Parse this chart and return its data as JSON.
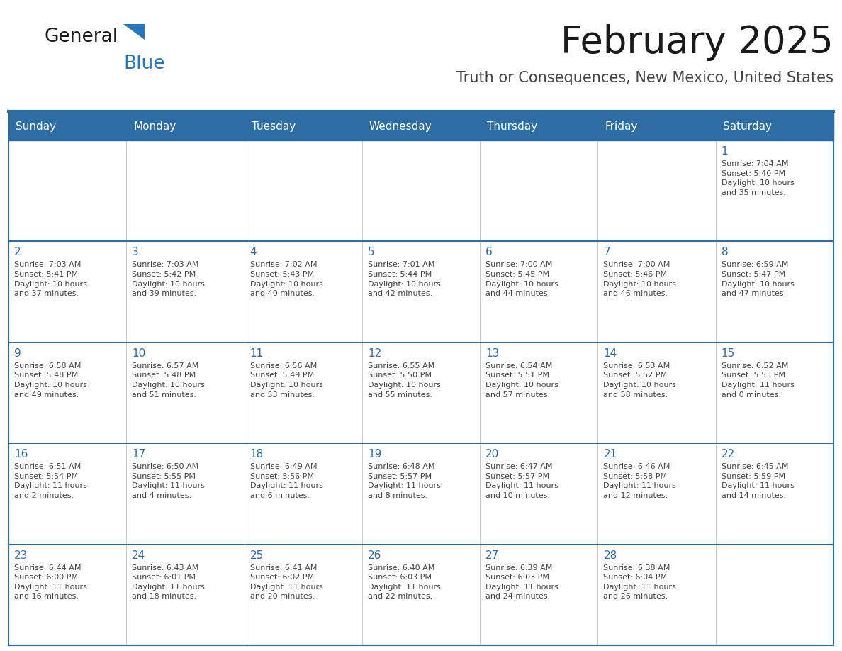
{
  "title": "February 2025",
  "subtitle": "Truth or Consequences, New Mexico, United States",
  "days_of_week": [
    "Sunday",
    "Monday",
    "Tuesday",
    "Wednesday",
    "Thursday",
    "Friday",
    "Saturday"
  ],
  "header_bg": "#2E6DA4",
  "header_text": "#FFFFFF",
  "cell_bg": "#FFFFFF",
  "cell_bg_first_row": "#F0F0F0",
  "day_number_color": "#2E6DA4",
  "text_color": "#444444",
  "row_border_color": "#2E6DA4",
  "col_border_color": "#CCCCCC",
  "outer_border_color": "#2E6DA4",
  "title_color": "#1a1a1a",
  "subtitle_color": "#444444",
  "logo_general_color": "#1a1a1a",
  "logo_blue_color": "#2479BE",
  "week_rows": [
    [
      {
        "day": null,
        "info": null
      },
      {
        "day": null,
        "info": null
      },
      {
        "day": null,
        "info": null
      },
      {
        "day": null,
        "info": null
      },
      {
        "day": null,
        "info": null
      },
      {
        "day": null,
        "info": null
      },
      {
        "day": 1,
        "info": "Sunrise: 7:04 AM\nSunset: 5:40 PM\nDaylight: 10 hours\nand 35 minutes."
      }
    ],
    [
      {
        "day": 2,
        "info": "Sunrise: 7:03 AM\nSunset: 5:41 PM\nDaylight: 10 hours\nand 37 minutes."
      },
      {
        "day": 3,
        "info": "Sunrise: 7:03 AM\nSunset: 5:42 PM\nDaylight: 10 hours\nand 39 minutes."
      },
      {
        "day": 4,
        "info": "Sunrise: 7:02 AM\nSunset: 5:43 PM\nDaylight: 10 hours\nand 40 minutes."
      },
      {
        "day": 5,
        "info": "Sunrise: 7:01 AM\nSunset: 5:44 PM\nDaylight: 10 hours\nand 42 minutes."
      },
      {
        "day": 6,
        "info": "Sunrise: 7:00 AM\nSunset: 5:45 PM\nDaylight: 10 hours\nand 44 minutes."
      },
      {
        "day": 7,
        "info": "Sunrise: 7:00 AM\nSunset: 5:46 PM\nDaylight: 10 hours\nand 46 minutes."
      },
      {
        "day": 8,
        "info": "Sunrise: 6:59 AM\nSunset: 5:47 PM\nDaylight: 10 hours\nand 47 minutes."
      }
    ],
    [
      {
        "day": 9,
        "info": "Sunrise: 6:58 AM\nSunset: 5:48 PM\nDaylight: 10 hours\nand 49 minutes."
      },
      {
        "day": 10,
        "info": "Sunrise: 6:57 AM\nSunset: 5:48 PM\nDaylight: 10 hours\nand 51 minutes."
      },
      {
        "day": 11,
        "info": "Sunrise: 6:56 AM\nSunset: 5:49 PM\nDaylight: 10 hours\nand 53 minutes."
      },
      {
        "day": 12,
        "info": "Sunrise: 6:55 AM\nSunset: 5:50 PM\nDaylight: 10 hours\nand 55 minutes."
      },
      {
        "day": 13,
        "info": "Sunrise: 6:54 AM\nSunset: 5:51 PM\nDaylight: 10 hours\nand 57 minutes."
      },
      {
        "day": 14,
        "info": "Sunrise: 6:53 AM\nSunset: 5:52 PM\nDaylight: 10 hours\nand 58 minutes."
      },
      {
        "day": 15,
        "info": "Sunrise: 6:52 AM\nSunset: 5:53 PM\nDaylight: 11 hours\nand 0 minutes."
      }
    ],
    [
      {
        "day": 16,
        "info": "Sunrise: 6:51 AM\nSunset: 5:54 PM\nDaylight: 11 hours\nand 2 minutes."
      },
      {
        "day": 17,
        "info": "Sunrise: 6:50 AM\nSunset: 5:55 PM\nDaylight: 11 hours\nand 4 minutes."
      },
      {
        "day": 18,
        "info": "Sunrise: 6:49 AM\nSunset: 5:56 PM\nDaylight: 11 hours\nand 6 minutes."
      },
      {
        "day": 19,
        "info": "Sunrise: 6:48 AM\nSunset: 5:57 PM\nDaylight: 11 hours\nand 8 minutes."
      },
      {
        "day": 20,
        "info": "Sunrise: 6:47 AM\nSunset: 5:57 PM\nDaylight: 11 hours\nand 10 minutes."
      },
      {
        "day": 21,
        "info": "Sunrise: 6:46 AM\nSunset: 5:58 PM\nDaylight: 11 hours\nand 12 minutes."
      },
      {
        "day": 22,
        "info": "Sunrise: 6:45 AM\nSunset: 5:59 PM\nDaylight: 11 hours\nand 14 minutes."
      }
    ],
    [
      {
        "day": 23,
        "info": "Sunrise: 6:44 AM\nSunset: 6:00 PM\nDaylight: 11 hours\nand 16 minutes."
      },
      {
        "day": 24,
        "info": "Sunrise: 6:43 AM\nSunset: 6:01 PM\nDaylight: 11 hours\nand 18 minutes."
      },
      {
        "day": 25,
        "info": "Sunrise: 6:41 AM\nSunset: 6:02 PM\nDaylight: 11 hours\nand 20 minutes."
      },
      {
        "day": 26,
        "info": "Sunrise: 6:40 AM\nSunset: 6:03 PM\nDaylight: 11 hours\nand 22 minutes."
      },
      {
        "day": 27,
        "info": "Sunrise: 6:39 AM\nSunset: 6:03 PM\nDaylight: 11 hours\nand 24 minutes."
      },
      {
        "day": 28,
        "info": "Sunrise: 6:38 AM\nSunset: 6:04 PM\nDaylight: 11 hours\nand 26 minutes."
      },
      {
        "day": null,
        "info": null
      }
    ]
  ]
}
